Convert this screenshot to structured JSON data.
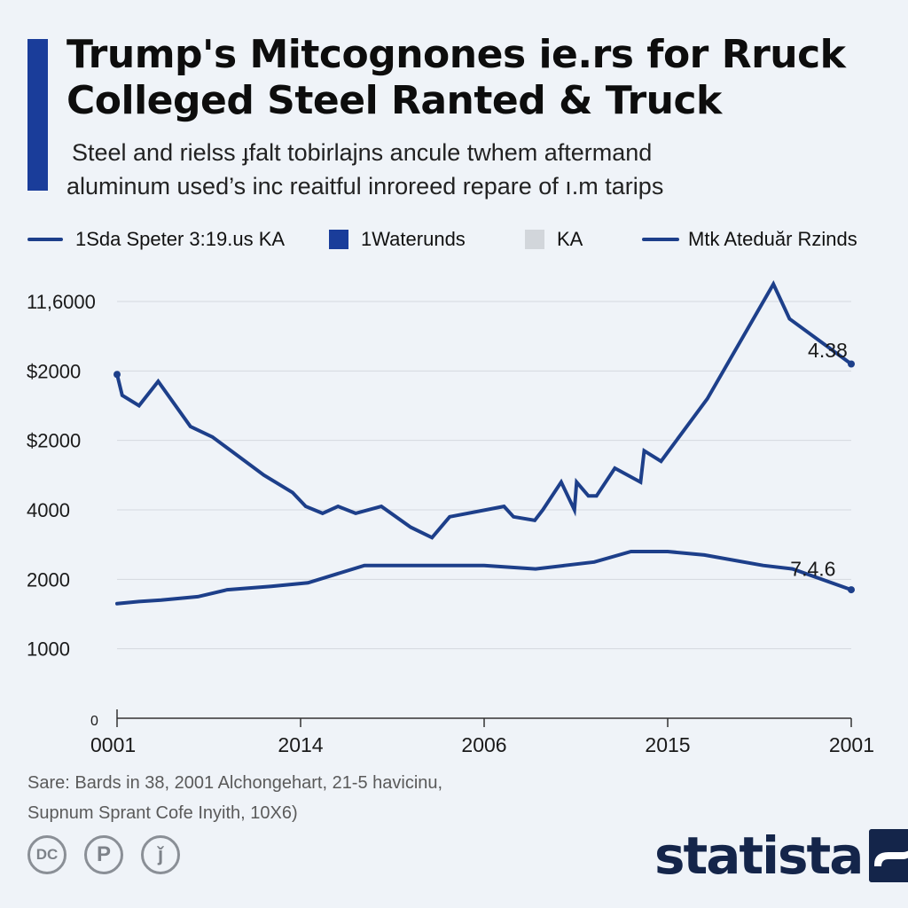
{
  "header": {
    "title_line1": "Trump's Mitcognones ie.rs for Rruck",
    "title_line2": "Colleged Steel Ranted & Truck",
    "subtitle_line1": "Steel and rielss ɟfalt tobirlajns ancule twhem aftermand",
    "subtitle_line2": "aluminum used’s inc reaitful inroreed repare of ı.m tarips",
    "accent_color": "#1a3d9a"
  },
  "legend": [
    {
      "label": "1Sda Speter 3:19.us KA",
      "swatch": "line",
      "color": "#1d3f8a"
    },
    {
      "label": "1Waterunds",
      "swatch": "box",
      "color": "#1a3d9a"
    },
    {
      "label": "KA",
      "swatch": "box",
      "color": "#d2d6db"
    },
    {
      "label": "Mtk Ateduăr Rzinds",
      "swatch": "line",
      "color": "#1d3f8a"
    }
  ],
  "chart_data": {
    "type": "line",
    "title": "Trump's Mitcognones ie.rs for Rruck Colleged Steel Ranted & Truck",
    "xlabel": "",
    "ylabel": "",
    "grid": true,
    "y_tick_labels": [
      "11,6000",
      "$2000",
      "$2000",
      "4000",
      "2000",
      "1000",
      "0"
    ],
    "x_tick_labels": [
      "0001",
      "2014",
      "2006",
      "2015",
      "2001"
    ],
    "x_range": [
      0,
      100
    ],
    "y_range": [
      0,
      6
    ],
    "annotations": [
      {
        "text": "4.38",
        "x": 98,
        "y": 5.3
      },
      {
        "text": "7.4.6",
        "x": 96,
        "y": 2.15
      }
    ],
    "series": [
      {
        "name": "1Sda Speter 3:19.us KA",
        "color": "#1d3f8a",
        "x": [
          0,
          0.7,
          3,
          5.6,
          10,
          13,
          20,
          23.9,
          25.7,
          28,
          30.1,
          32.5,
          36,
          40,
          42.9,
          45.3,
          52.7,
          54,
          56.9,
          58,
          60.5,
          62.3,
          62.6,
          64.2,
          65.3,
          67.8,
          71.3,
          71.8,
          74.1,
          80.4,
          89.4,
          91.6,
          100
        ],
        "y": [
          4.95,
          4.65,
          4.5,
          4.85,
          4.2,
          4.05,
          3.5,
          3.25,
          3.05,
          2.95,
          3.05,
          2.95,
          3.05,
          2.75,
          2.6,
          2.9,
          3.05,
          2.9,
          2.85,
          3.0,
          3.4,
          3.0,
          3.4,
          3.2,
          3.2,
          3.6,
          3.4,
          3.85,
          3.7,
          4.6,
          6.25,
          5.75,
          5.1
        ]
      },
      {
        "name": "Mtk Ateduăr Rzinds",
        "color": "#1d3f8a",
        "x": [
          0,
          3,
          6,
          11,
          15,
          21,
          26,
          33.7,
          40,
          50,
          57,
          61,
          65,
          70,
          75,
          80,
          88,
          92,
          100
        ],
        "y": [
          1.65,
          1.68,
          1.7,
          1.75,
          1.85,
          1.9,
          1.95,
          2.2,
          2.2,
          2.2,
          2.15,
          2.2,
          2.25,
          2.4,
          2.4,
          2.35,
          2.2,
          2.15,
          1.85
        ]
      }
    ]
  },
  "source": {
    "line1": "Sare: Bards in 38, 2001 Alchongehart, 21-5 havicinu,",
    "line2": "Supnum Sprant Cofe Inyith, 10X6)"
  },
  "footer": {
    "icons": [
      {
        "name": "creative-commons-icon",
        "glyph": "DC"
      },
      {
        "name": "public-domain-icon",
        "glyph": "P"
      },
      {
        "name": "info-icon",
        "glyph": "ǰ"
      }
    ],
    "brand": "statista",
    "brand_color": "#14254a"
  }
}
